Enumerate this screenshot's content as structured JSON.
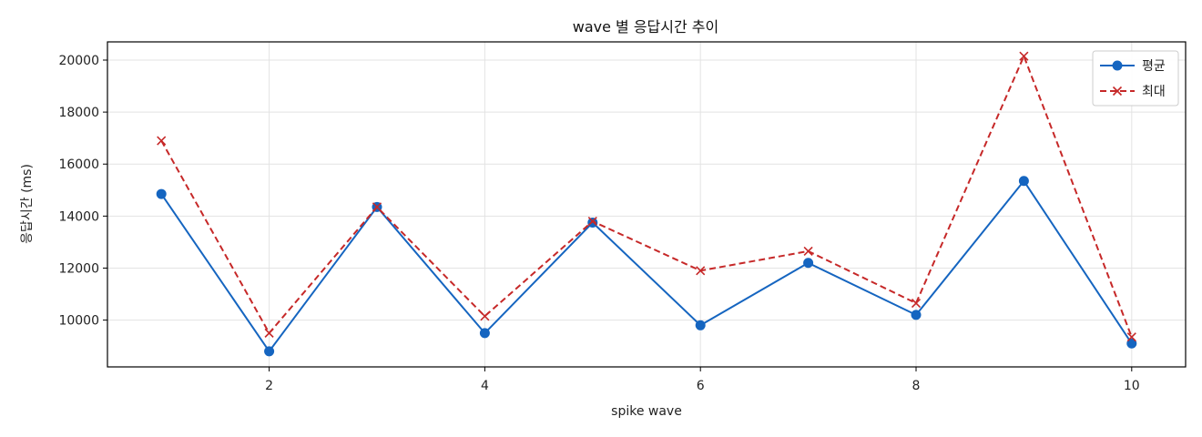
{
  "chart_data": {
    "type": "line",
    "title": "wave 별 응답시간 추이",
    "xlabel": "spike wave",
    "ylabel": "응답시간 (ms)",
    "x": [
      1,
      2,
      3,
      4,
      5,
      6,
      7,
      8,
      9,
      10
    ],
    "xlim": [
      0.5,
      10.5
    ],
    "ylim": [
      8200,
      20700
    ],
    "xticks": [
      2,
      4,
      6,
      8,
      10
    ],
    "yticks": [
      10000,
      12000,
      14000,
      16000,
      18000,
      20000
    ],
    "grid": true,
    "legend_position": "top-right",
    "series": [
      {
        "name": "평균",
        "color": "#1565c0",
        "line_style": "solid",
        "marker": "circle",
        "values": [
          14850,
          8800,
          14350,
          9500,
          13750,
          9800,
          12200,
          10200,
          15350,
          9100
        ]
      },
      {
        "name": "최대",
        "color": "#c62828",
        "line_style": "dashed",
        "marker": "x",
        "values": [
          16900,
          9500,
          14350,
          10150,
          13800,
          11900,
          12650,
          10650,
          20150,
          9350
        ]
      }
    ]
  }
}
